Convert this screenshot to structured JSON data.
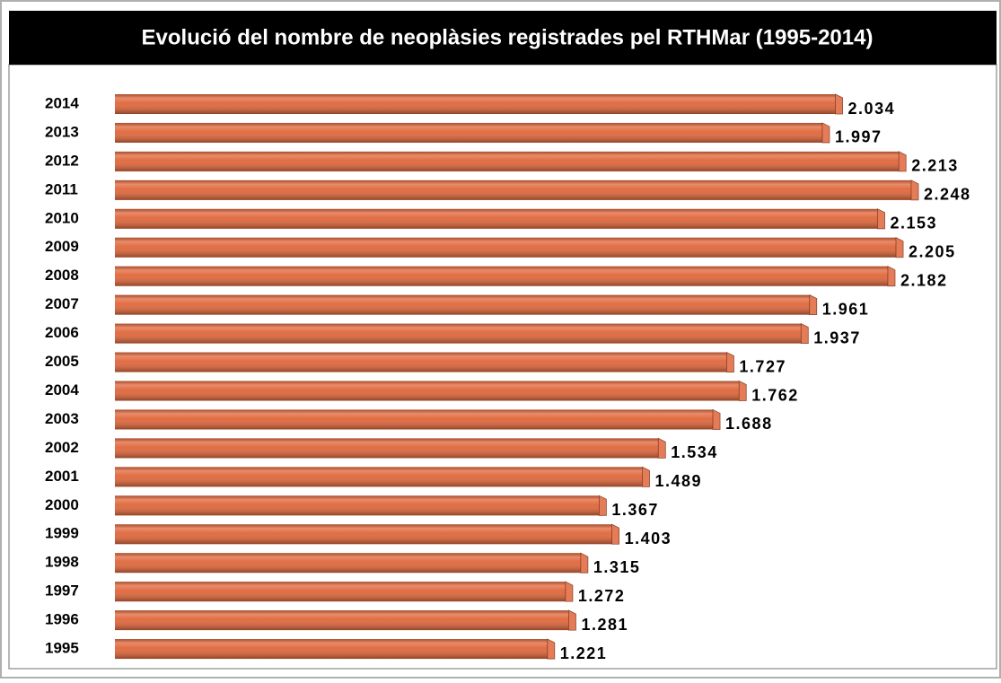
{
  "chart_data": {
    "type": "bar",
    "orientation": "horizontal",
    "title": "Evolució del nombre de neoplàsies registrades pel RTHMar (1995-2014)",
    "categories": [
      "2014",
      "2013",
      "2012",
      "2011",
      "2010",
      "2009",
      "2008",
      "2007",
      "2006",
      "2005",
      "2004",
      "2003",
      "2002",
      "2001",
      "2000",
      "1999",
      "1998",
      "1997",
      "1996",
      "1995"
    ],
    "values": [
      2034,
      1997,
      2213,
      2248,
      2153,
      2205,
      2182,
      1961,
      1937,
      1727,
      1762,
      1688,
      1534,
      1489,
      1367,
      1403,
      1315,
      1272,
      1281,
      1221
    ],
    "value_labels": [
      "2.034",
      "1.997",
      "2.213",
      "2.248",
      "2.153",
      "2.205",
      "2.182",
      "1.961",
      "1.937",
      "1.727",
      "1.762",
      "1.688",
      "1.534",
      "1.489",
      "1.367",
      "1.403",
      "1.315",
      "1.272",
      "1.281",
      "1.221"
    ],
    "color": "#e0663a"
  }
}
